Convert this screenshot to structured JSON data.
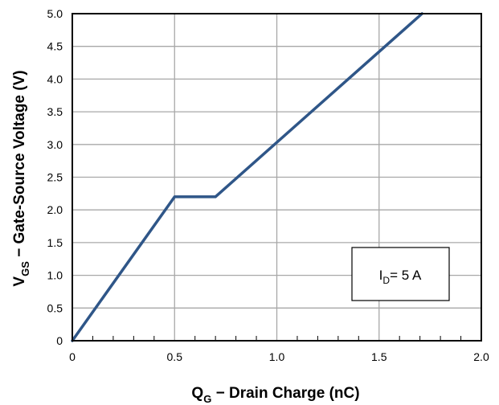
{
  "chart_data": {
    "type": "line",
    "xlabel": {
      "main": "Q",
      "sub": "G",
      "rest": " − Drain Charge (nC)"
    },
    "ylabel": {
      "main": "V",
      "sub": "GS",
      "rest": " − Gate-Source Voltage (V)"
    },
    "xlim": [
      0,
      2.0
    ],
    "ylim": [
      0,
      5.0
    ],
    "x_ticks": [
      0,
      0.5,
      1.0,
      1.5,
      2.0
    ],
    "x_tick_labels": [
      "0",
      "0.5",
      "1.0",
      "1.5",
      "2.0"
    ],
    "y_ticks": [
      0,
      0.5,
      1.0,
      1.5,
      2.0,
      2.5,
      3.0,
      3.5,
      4.0,
      4.5,
      5.0
    ],
    "y_tick_labels": [
      "0",
      "0.5",
      "1.0",
      "1.5",
      "2.0",
      "2.5",
      "3.0",
      "3.5",
      "4.0",
      "4.5",
      "5.0"
    ],
    "x_minor_ticks": [
      0.1,
      0.2,
      0.3,
      0.4,
      0.6,
      0.7,
      0.8,
      0.9,
      1.1,
      1.2,
      1.3,
      1.4,
      1.6,
      1.7,
      1.8,
      1.9
    ],
    "grid": true,
    "series": [
      {
        "color": "#2f5688",
        "x": [
          0,
          0.5,
          0.7,
          1.71
        ],
        "y": [
          0,
          2.2,
          2.2,
          5.0
        ]
      }
    ],
    "annotation": {
      "main": "I",
      "sub": "D",
      "rest": "= 5 A",
      "position": "lower-right"
    }
  }
}
